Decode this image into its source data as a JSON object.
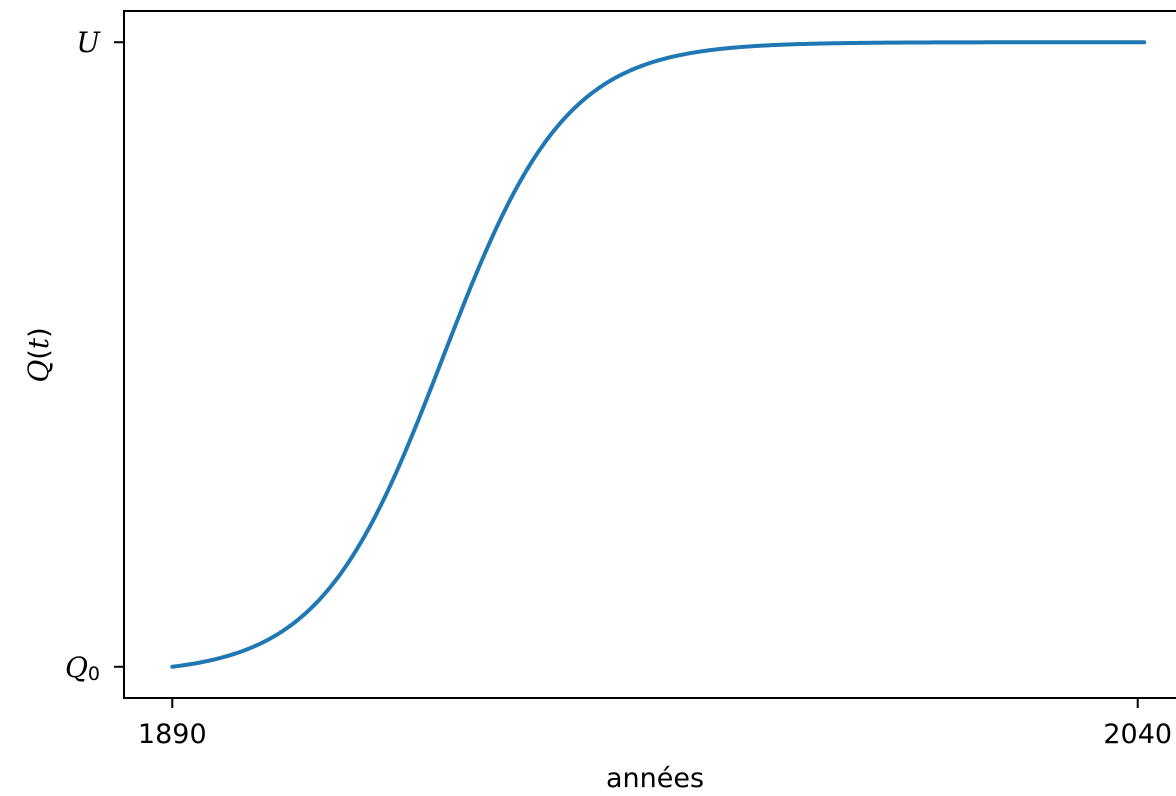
{
  "chart_data": {
    "type": "line",
    "title": "",
    "xlabel": "années",
    "ylabel": {
      "func": "Q",
      "open_paren": "(",
      "var": "t",
      "close_paren": ")"
    },
    "x_ticks": [
      {
        "value": 1890,
        "label": "1890"
      },
      {
        "value": 2040,
        "label": "2040"
      }
    ],
    "y_ticks": [
      {
        "value": 0,
        "base": "Q",
        "sub": "0"
      },
      {
        "value": 1,
        "base": "U",
        "sub": ""
      }
    ],
    "xlim": [
      1882.5,
      2047.5
    ],
    "ylim": [
      -0.05,
      1.05
    ],
    "grid": false,
    "series": [
      {
        "color": "#1f77b4",
        "curve": "logistic",
        "x_start": 1890,
        "x_end": 2041,
        "midpoint": 1932,
        "rate": 0.105,
        "y_min": 0,
        "y_max": 1
      }
    ]
  }
}
